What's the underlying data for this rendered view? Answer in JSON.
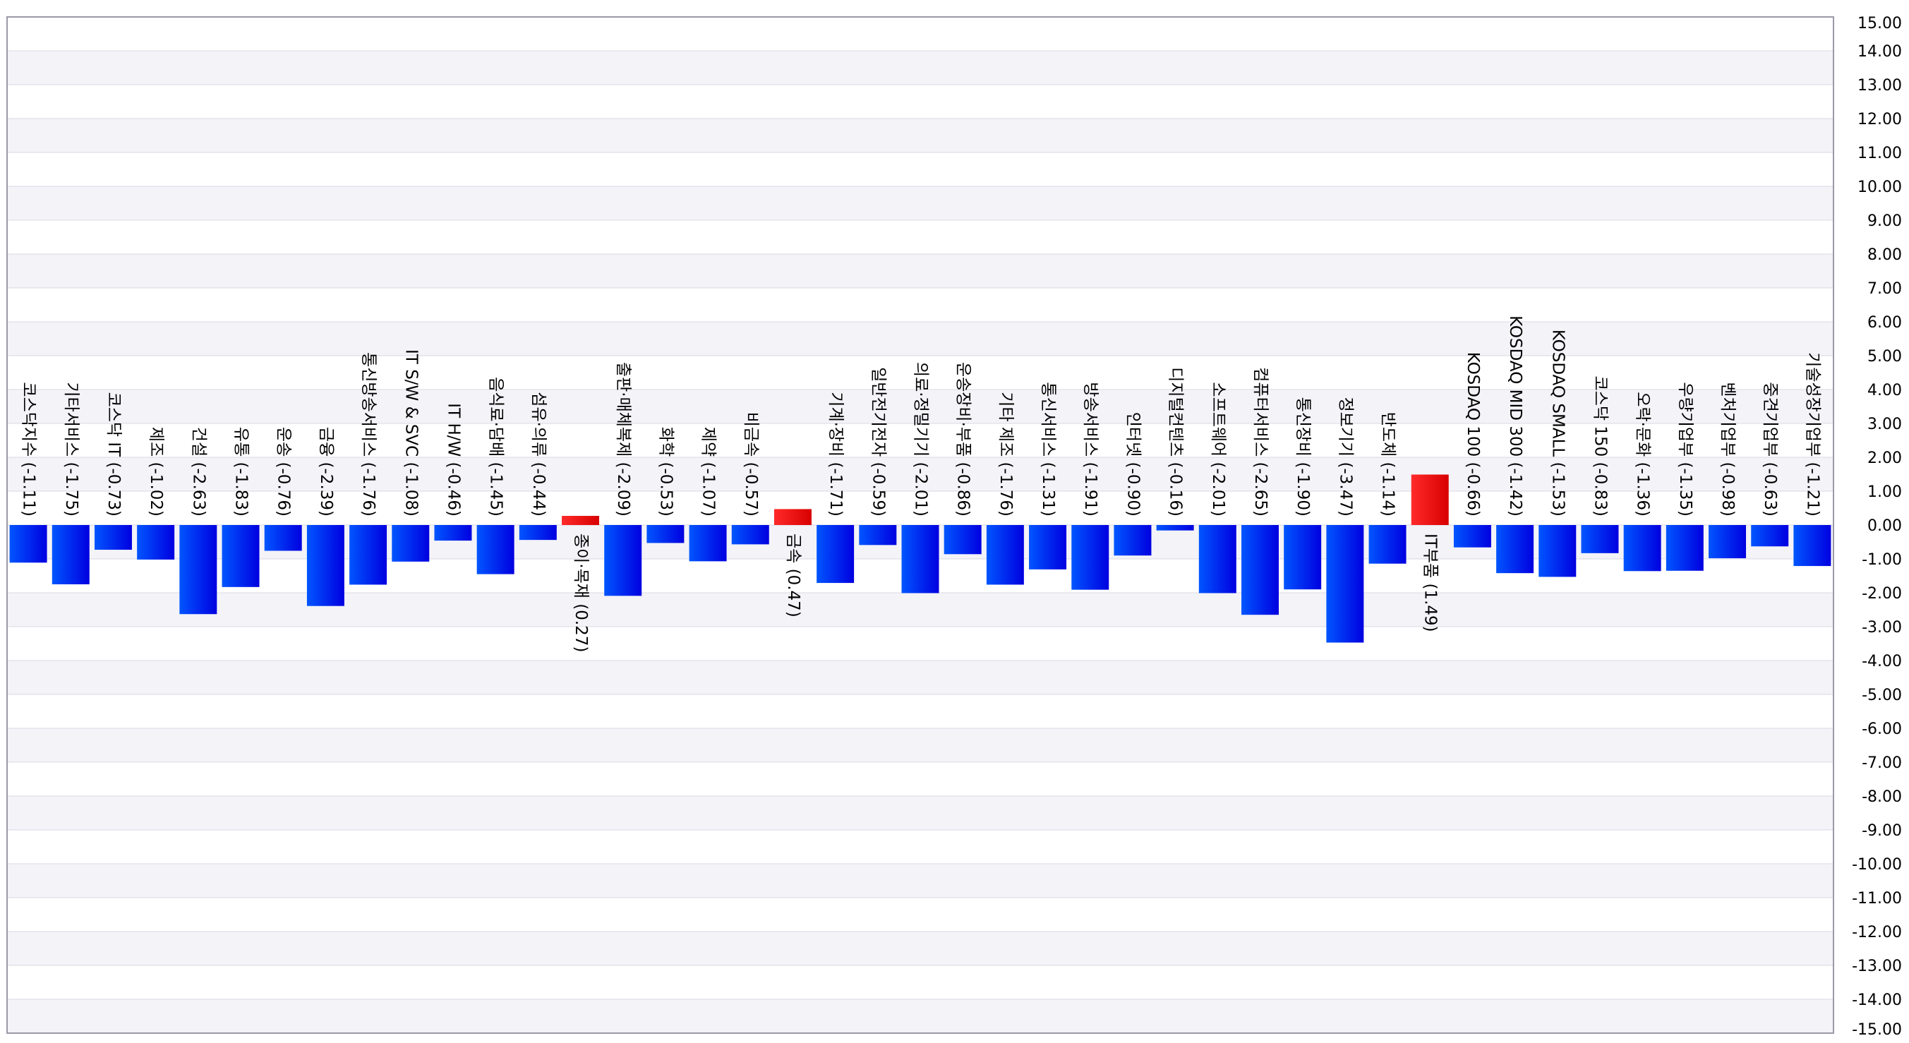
{
  "colors": {
    "positive": "#ff0000",
    "negative": "#0000ff",
    "grid_band": "#f3f3f8",
    "grid_line": "#d8d8e4",
    "frame": "#9a9aa8",
    "background": "#ffffff"
  },
  "chart_data": {
    "type": "bar",
    "title": "",
    "xlabel": "",
    "ylabel": "",
    "ylim": [
      -15,
      15
    ],
    "y_tick_step": 1,
    "y_axis_position": "right",
    "grid": true,
    "legend": "none",
    "categories": [
      "코스닥지수",
      "기타서비스",
      "코스닥 IT",
      "제조",
      "건설",
      "유통",
      "운송",
      "금융",
      "통신방송서비스",
      "IT S/W & SVC",
      "IT H/W",
      "음식료·담배",
      "섬유·의류",
      "종이·목재",
      "출판·매체복제",
      "화학",
      "제약",
      "비금속",
      "금속",
      "기계·장비",
      "일반전기전자",
      "의료·정밀기기",
      "운송장비·부품",
      "기타 제조",
      "통신서비스",
      "방송서비스",
      "인터넷",
      "디지털컨텐츠",
      "소프트웨어",
      "컴퓨터서비스",
      "통신장비",
      "정보기기",
      "반도체",
      "IT부품",
      "KOSDAQ 100",
      "KOSDAQ MID 300",
      "KOSDAQ SMALL",
      "코스닥 150",
      "오락·문화",
      "우량기업부",
      "벤처기업부",
      "중견기업부",
      "기술성장기업부"
    ],
    "values": [
      -1.11,
      -1.75,
      -0.73,
      -1.02,
      -2.63,
      -1.83,
      -0.76,
      -2.39,
      -1.76,
      -1.08,
      -0.46,
      -1.45,
      -0.44,
      0.27,
      -2.09,
      -0.53,
      -1.07,
      -0.57,
      0.47,
      -1.71,
      -0.59,
      -2.01,
      -0.86,
      -1.76,
      -1.31,
      -1.91,
      -0.9,
      -0.16,
      -2.01,
      -2.65,
      -1.9,
      -3.47,
      -1.14,
      1.49,
      -0.66,
      -1.42,
      -1.53,
      -0.83,
      -1.36,
      -1.35,
      -0.98,
      -0.63,
      -1.21
    ],
    "labels": [
      "코스닥지수 (-1.11)",
      "기타서비스 (-1.75)",
      "코스닥 IT (-0.73)",
      "제조 (-1.02)",
      "건설 (-2.63)",
      "유통 (-1.83)",
      "운송 (-0.76)",
      "금융 (-2.39)",
      "통신방송서비스 (-1.76)",
      "IT S/W & SVC (-1.08)",
      "IT H/W (-0.46)",
      "음식료·담배 (-1.45)",
      "섬유·의류 (-0.44)",
      "종이·목재 (0.27)",
      "출판·매체복제 (-2.09)",
      "화학 (-0.53)",
      "제약 (-1.07)",
      "비금속 (-0.57)",
      "금속 (0.47)",
      "기계·장비 (-1.71)",
      "일반전기전자 (-0.59)",
      "의료·정밀기기 (-2.01)",
      "운송장비·부품 (-0.86)",
      "기타 제조 (-1.76)",
      "통신서비스 (-1.31)",
      "방송서비스 (-1.91)",
      "인터넷 (-0.90)",
      "디지털컨텐츠 (-0.16)",
      "소프트웨어 (-2.01)",
      "컴퓨터서비스 (-2.65)",
      "통신장비 (-1.90)",
      "정보기기 (-3.47)",
      "반도체 (-1.14)",
      "IT부품 (1.49)",
      "KOSDAQ 100 (-0.66)",
      "KOSDAQ MID 300 (-1.42)",
      "KOSDAQ SMALL (-1.53)",
      "코스닥 150 (-0.83)",
      "오락·문화 (-1.36)",
      "우량기업부 (-1.35)",
      "벤처기업부 (-0.98)",
      "중견기업부 (-0.63)",
      "기술성장기업부 (-1.21)"
    ],
    "y_ticks": [
      "15.00",
      "14.00",
      "13.00",
      "12.00",
      "11.00",
      "10.00",
      "9.00",
      "8.00",
      "7.00",
      "6.00",
      "5.00",
      "4.00",
      "3.00",
      "2.00",
      "1.00",
      "0.00",
      "-1.00",
      "-2.00",
      "-3.00",
      "-4.00",
      "-5.00",
      "-6.00",
      "-7.00",
      "-8.00",
      "-9.00",
      "-10.00",
      "-11.00",
      "-12.00",
      "-13.00",
      "-14.00",
      "-15.00"
    ]
  }
}
